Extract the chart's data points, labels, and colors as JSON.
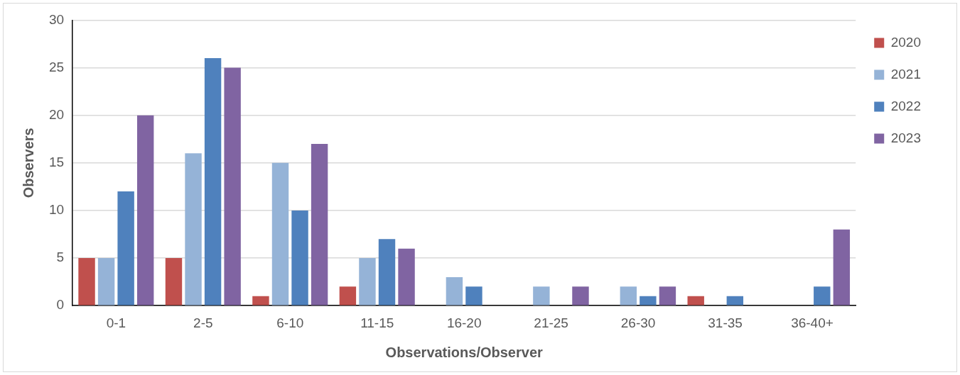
{
  "chart_data": {
    "type": "bar",
    "xlabel": "Observations/Observer",
    "ylabel": "Observers",
    "categories": [
      "0-1",
      "2-5",
      "6-10",
      "11-15",
      "16-20",
      "21-25",
      "26-30",
      "31-35",
      "36-40+"
    ],
    "series": [
      {
        "name": "2020",
        "color": "#c0504d",
        "values": [
          5,
          5,
          1,
          2,
          0,
          0,
          0,
          1,
          0
        ]
      },
      {
        "name": "2021",
        "color": "#95b3d7",
        "values": [
          5,
          16,
          15,
          5,
          3,
          2,
          2,
          0,
          0
        ]
      },
      {
        "name": "2022",
        "color": "#4f81bd",
        "values": [
          12,
          26,
          10,
          7,
          2,
          0,
          1,
          1,
          2
        ]
      },
      {
        "name": "2023",
        "color": "#8064a2",
        "values": [
          20,
          25,
          17,
          6,
          0,
          2,
          2,
          0,
          8
        ]
      }
    ],
    "ylim": [
      0,
      30
    ],
    "yticks": [
      0,
      5,
      10,
      15,
      20,
      25,
      30
    ],
    "grid": "y",
    "legend": "top right"
  }
}
